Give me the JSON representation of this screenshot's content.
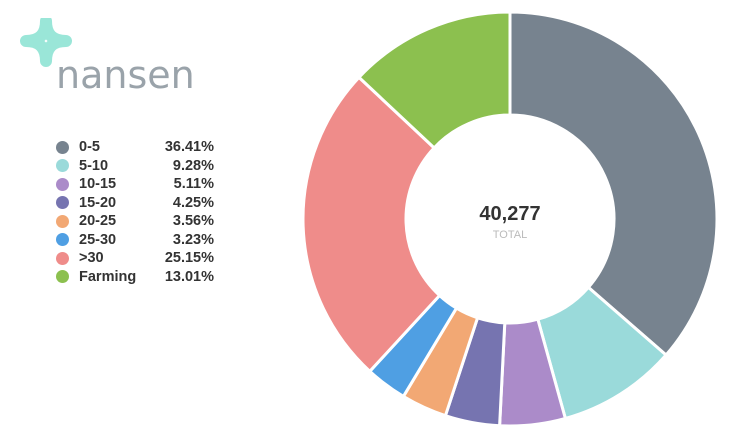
{
  "brand": {
    "name": "nansen"
  },
  "chart_data": {
    "type": "pie",
    "style": "donut",
    "categories": [
      "0-5",
      "5-10",
      "10-15",
      "15-20",
      "20-25",
      "25-30",
      ">30",
      "Farming"
    ],
    "values": [
      36.41,
      9.28,
      5.11,
      4.25,
      3.56,
      3.23,
      25.15,
      13.01
    ],
    "labels": [
      "36.41%",
      "9.28%",
      "5.11%",
      "4.25%",
      "3.56%",
      "3.23%",
      "25.15%",
      "13.01%"
    ],
    "colors": [
      "#77838f",
      "#9adada",
      "#ab8bc9",
      "#7674b0",
      "#f2a874",
      "#4f9fe3",
      "#ef8c8a",
      "#8cc04f"
    ],
    "center_value": "40,277",
    "center_label": "TOTAL",
    "legend_placement": "left"
  }
}
